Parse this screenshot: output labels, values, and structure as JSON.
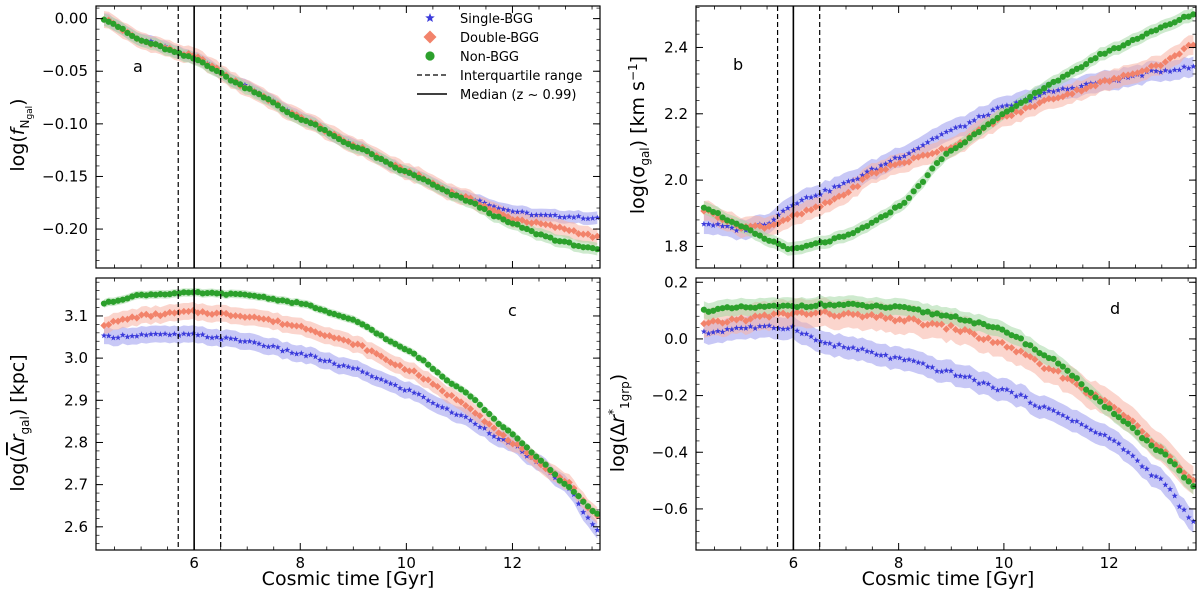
{
  "chart_data": [
    {
      "type": "scatter",
      "panel": "a",
      "ylabel": "log(f_Ngal)",
      "xlabel": "",
      "xlim": [
        4.15,
        13.65
      ],
      "ylim": [
        -0.237,
        0.012
      ],
      "yticks": [
        0.0,
        -0.05,
        -0.1,
        -0.15,
        -0.2
      ],
      "ytick_labels": [
        "0.00",
        "−0.05",
        "−0.10",
        "−0.15",
        "−0.20"
      ],
      "series": [
        {
          "name": "Single-BGG",
          "x": [
            4.3,
            5,
            6,
            7,
            8,
            9,
            10,
            11,
            12,
            12.5,
            13,
            13.6
          ],
          "y": [
            0,
            -0.02,
            -0.037,
            -0.065,
            -0.094,
            -0.12,
            -0.145,
            -0.168,
            -0.183,
            -0.187,
            -0.188,
            -0.19
          ],
          "band": 0.006
        },
        {
          "name": "Double-BGG",
          "x": [
            4.3,
            5,
            6,
            7,
            8,
            9,
            10,
            11,
            12,
            12.5,
            13,
            13.6
          ],
          "y": [
            0,
            -0.021,
            -0.036,
            -0.066,
            -0.094,
            -0.12,
            -0.145,
            -0.168,
            -0.19,
            -0.195,
            -0.2,
            -0.208
          ],
          "band": 0.008
        },
        {
          "name": "Non-BGG",
          "x": [
            4.3,
            5,
            6,
            7,
            8,
            9,
            10,
            11,
            12,
            12.5,
            13,
            13.6
          ],
          "y": [
            0,
            -0.021,
            -0.038,
            -0.066,
            -0.095,
            -0.121,
            -0.146,
            -0.17,
            -0.195,
            -0.205,
            -0.213,
            -0.22
          ],
          "band": 0.006
        }
      ]
    },
    {
      "type": "scatter",
      "panel": "b",
      "ylabel": "log(σ_gal) [km s⁻¹]",
      "xlabel": "",
      "xlim": [
        4.15,
        13.65
      ],
      "ylim": [
        1.735,
        2.525
      ],
      "yticks": [
        1.8,
        2.0,
        2.2,
        2.4
      ],
      "ytick_labels": [
        "1.8",
        "2.0",
        "2.2",
        "2.4"
      ],
      "series": [
        {
          "name": "Single-BGG",
          "x": [
            4.3,
            5,
            5.5,
            6,
            6.5,
            7,
            7.5,
            8,
            9,
            10,
            11,
            12,
            13,
            13.6
          ],
          "y": [
            1.87,
            1.85,
            1.87,
            1.93,
            1.96,
            1.99,
            2.03,
            2.07,
            2.15,
            2.22,
            2.27,
            2.3,
            2.33,
            2.34
          ],
          "band": 0.03
        },
        {
          "name": "Double-BGG",
          "x": [
            4.3,
            5,
            5.5,
            6,
            6.5,
            7,
            7.5,
            8,
            9,
            10,
            11,
            12,
            13,
            13.6
          ],
          "y": [
            1.91,
            1.86,
            1.86,
            1.89,
            1.92,
            1.96,
            2.02,
            2.05,
            2.1,
            2.19,
            2.25,
            2.3,
            2.35,
            2.41
          ],
          "band": 0.03
        },
        {
          "name": "Non-BGG",
          "x": [
            4.3,
            5,
            5.5,
            6,
            6.5,
            7,
            7.5,
            8,
            9,
            10,
            11,
            12,
            13,
            13.6
          ],
          "y": [
            1.92,
            1.86,
            1.82,
            1.79,
            1.81,
            1.83,
            1.87,
            1.92,
            2.09,
            2.2,
            2.3,
            2.39,
            2.46,
            2.5
          ],
          "band": 0.02
        }
      ]
    },
    {
      "type": "scatter",
      "panel": "c",
      "ylabel": "log(Δr̅_gal) [kpc]",
      "xlabel": "Cosmic time [Gyr]",
      "xlim": [
        4.15,
        13.65
      ],
      "ylim": [
        2.545,
        3.19
      ],
      "yticks": [
        2.6,
        2.7,
        2.8,
        2.9,
        3.0,
        3.1
      ],
      "ytick_labels": [
        "2.6",
        "2.7",
        "2.8",
        "2.9",
        "3.0",
        "3.1"
      ],
      "series": [
        {
          "name": "Single-BGG",
          "x": [
            4.3,
            5,
            6,
            7,
            8,
            9,
            10,
            11,
            12,
            12.5,
            13,
            13.6
          ],
          "y": [
            3.05,
            3.055,
            3.055,
            3.04,
            3.01,
            2.975,
            2.925,
            2.865,
            2.795,
            2.75,
            2.7,
            2.59
          ],
          "band": 0.02
        },
        {
          "name": "Double-BGG",
          "x": [
            4.3,
            5,
            6,
            7,
            8,
            9,
            10,
            11,
            12,
            12.5,
            13,
            13.6
          ],
          "y": [
            3.08,
            3.1,
            3.11,
            3.1,
            3.075,
            3.035,
            2.975,
            2.9,
            2.8,
            2.75,
            2.71,
            2.625
          ],
          "band": 0.02
        },
        {
          "name": "Non-BGG",
          "x": [
            4.3,
            5,
            6,
            7,
            8,
            9,
            10,
            11,
            12,
            12.5,
            13,
            13.6
          ],
          "y": [
            3.13,
            3.15,
            3.155,
            3.15,
            3.13,
            3.09,
            3.02,
            2.93,
            2.82,
            2.76,
            2.7,
            2.63
          ],
          "band": 0.01
        }
      ]
    },
    {
      "type": "scatter",
      "panel": "d",
      "ylabel": "log(Δr*_1grp)",
      "xlabel": "Cosmic time [Gyr]",
      "xlim": [
        4.15,
        13.65
      ],
      "ylim": [
        -0.745,
        0.215
      ],
      "yticks": [
        0.2,
        0.0,
        -0.2,
        -0.4,
        -0.6
      ],
      "ytick_labels": [
        "0.2",
        "0.0",
        "−0.2",
        "−0.4",
        "−0.6"
      ],
      "series": [
        {
          "name": "Single-BGG",
          "x": [
            4.3,
            5,
            6,
            6.5,
            7,
            8,
            9,
            10,
            11,
            12,
            13,
            13.6
          ],
          "y": [
            0.02,
            0.04,
            0.04,
            -0.01,
            -0.03,
            -0.07,
            -0.12,
            -0.18,
            -0.26,
            -0.35,
            -0.5,
            -0.65
          ],
          "band": 0.04
        },
        {
          "name": "Double-BGG",
          "x": [
            4.3,
            5,
            6,
            6.5,
            7,
            8,
            9,
            10,
            11,
            12,
            13,
            13.6
          ],
          "y": [
            0.05,
            0.07,
            0.09,
            0.09,
            0.085,
            0.07,
            0.04,
            -0.02,
            -0.12,
            -0.23,
            -0.38,
            -0.5
          ],
          "band": 0.05
        },
        {
          "name": "Non-BGG",
          "x": [
            4.3,
            5,
            6,
            6.5,
            7,
            8,
            9,
            10,
            11,
            12,
            13,
            13.6
          ],
          "y": [
            0.1,
            0.11,
            0.115,
            0.12,
            0.12,
            0.11,
            0.08,
            0.03,
            -0.08,
            -0.25,
            -0.4,
            -0.52
          ],
          "band": 0.03
        }
      ]
    }
  ],
  "xticks": [
    6,
    8,
    10,
    12
  ],
  "xtick_labels": [
    "6",
    "8",
    "10",
    "12"
  ],
  "reference_lines": {
    "interquartile": [
      5.7,
      6.5
    ],
    "median": 6.0
  },
  "legend": {
    "items": [
      {
        "label": "Single-BGG",
        "marker": "star",
        "color": "#3b3bdb"
      },
      {
        "label": "Double-BGG",
        "marker": "diamond",
        "color": "#f2836b"
      },
      {
        "label": "Non-BGG",
        "marker": "circle",
        "color": "#2ca02c"
      },
      {
        "label": "Interquartile range",
        "marker": "dashed-line",
        "color": "#000000"
      },
      {
        "label": "Median (z ~ 0.99)",
        "marker": "solid-line",
        "color": "#000000"
      }
    ]
  },
  "colors": {
    "single": "#3b3bdb",
    "double": "#f2836b",
    "non": "#2ca02c",
    "single_band": "#9b9bef",
    "double_band": "#f7b3a4",
    "non_band": "#a6d8a6"
  }
}
